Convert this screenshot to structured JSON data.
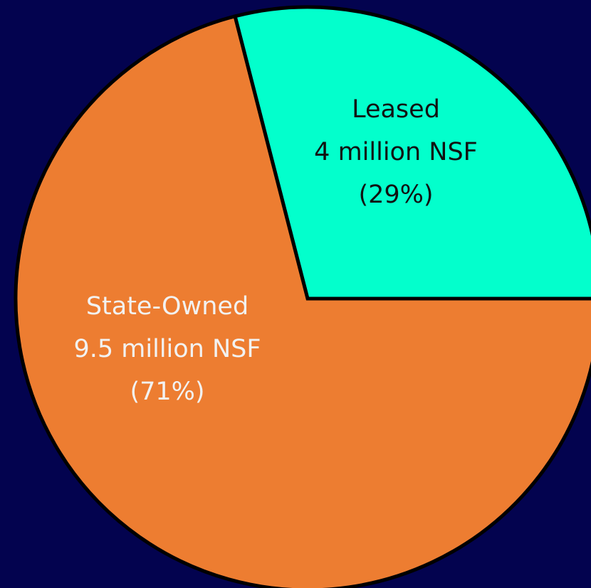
{
  "chart_data": {
    "type": "pie",
    "categories": [
      "Leased",
      "State-Owned"
    ],
    "details": [
      "4 million NSF",
      "9.5 million NSF"
    ],
    "values": [
      29,
      71
    ],
    "value_labels": [
      "(29%)",
      "(71%)"
    ],
    "colors": [
      "#03ffcc",
      "#ed7d31"
    ],
    "label_colors": [
      "#111111",
      "#f2f2f2"
    ]
  }
}
